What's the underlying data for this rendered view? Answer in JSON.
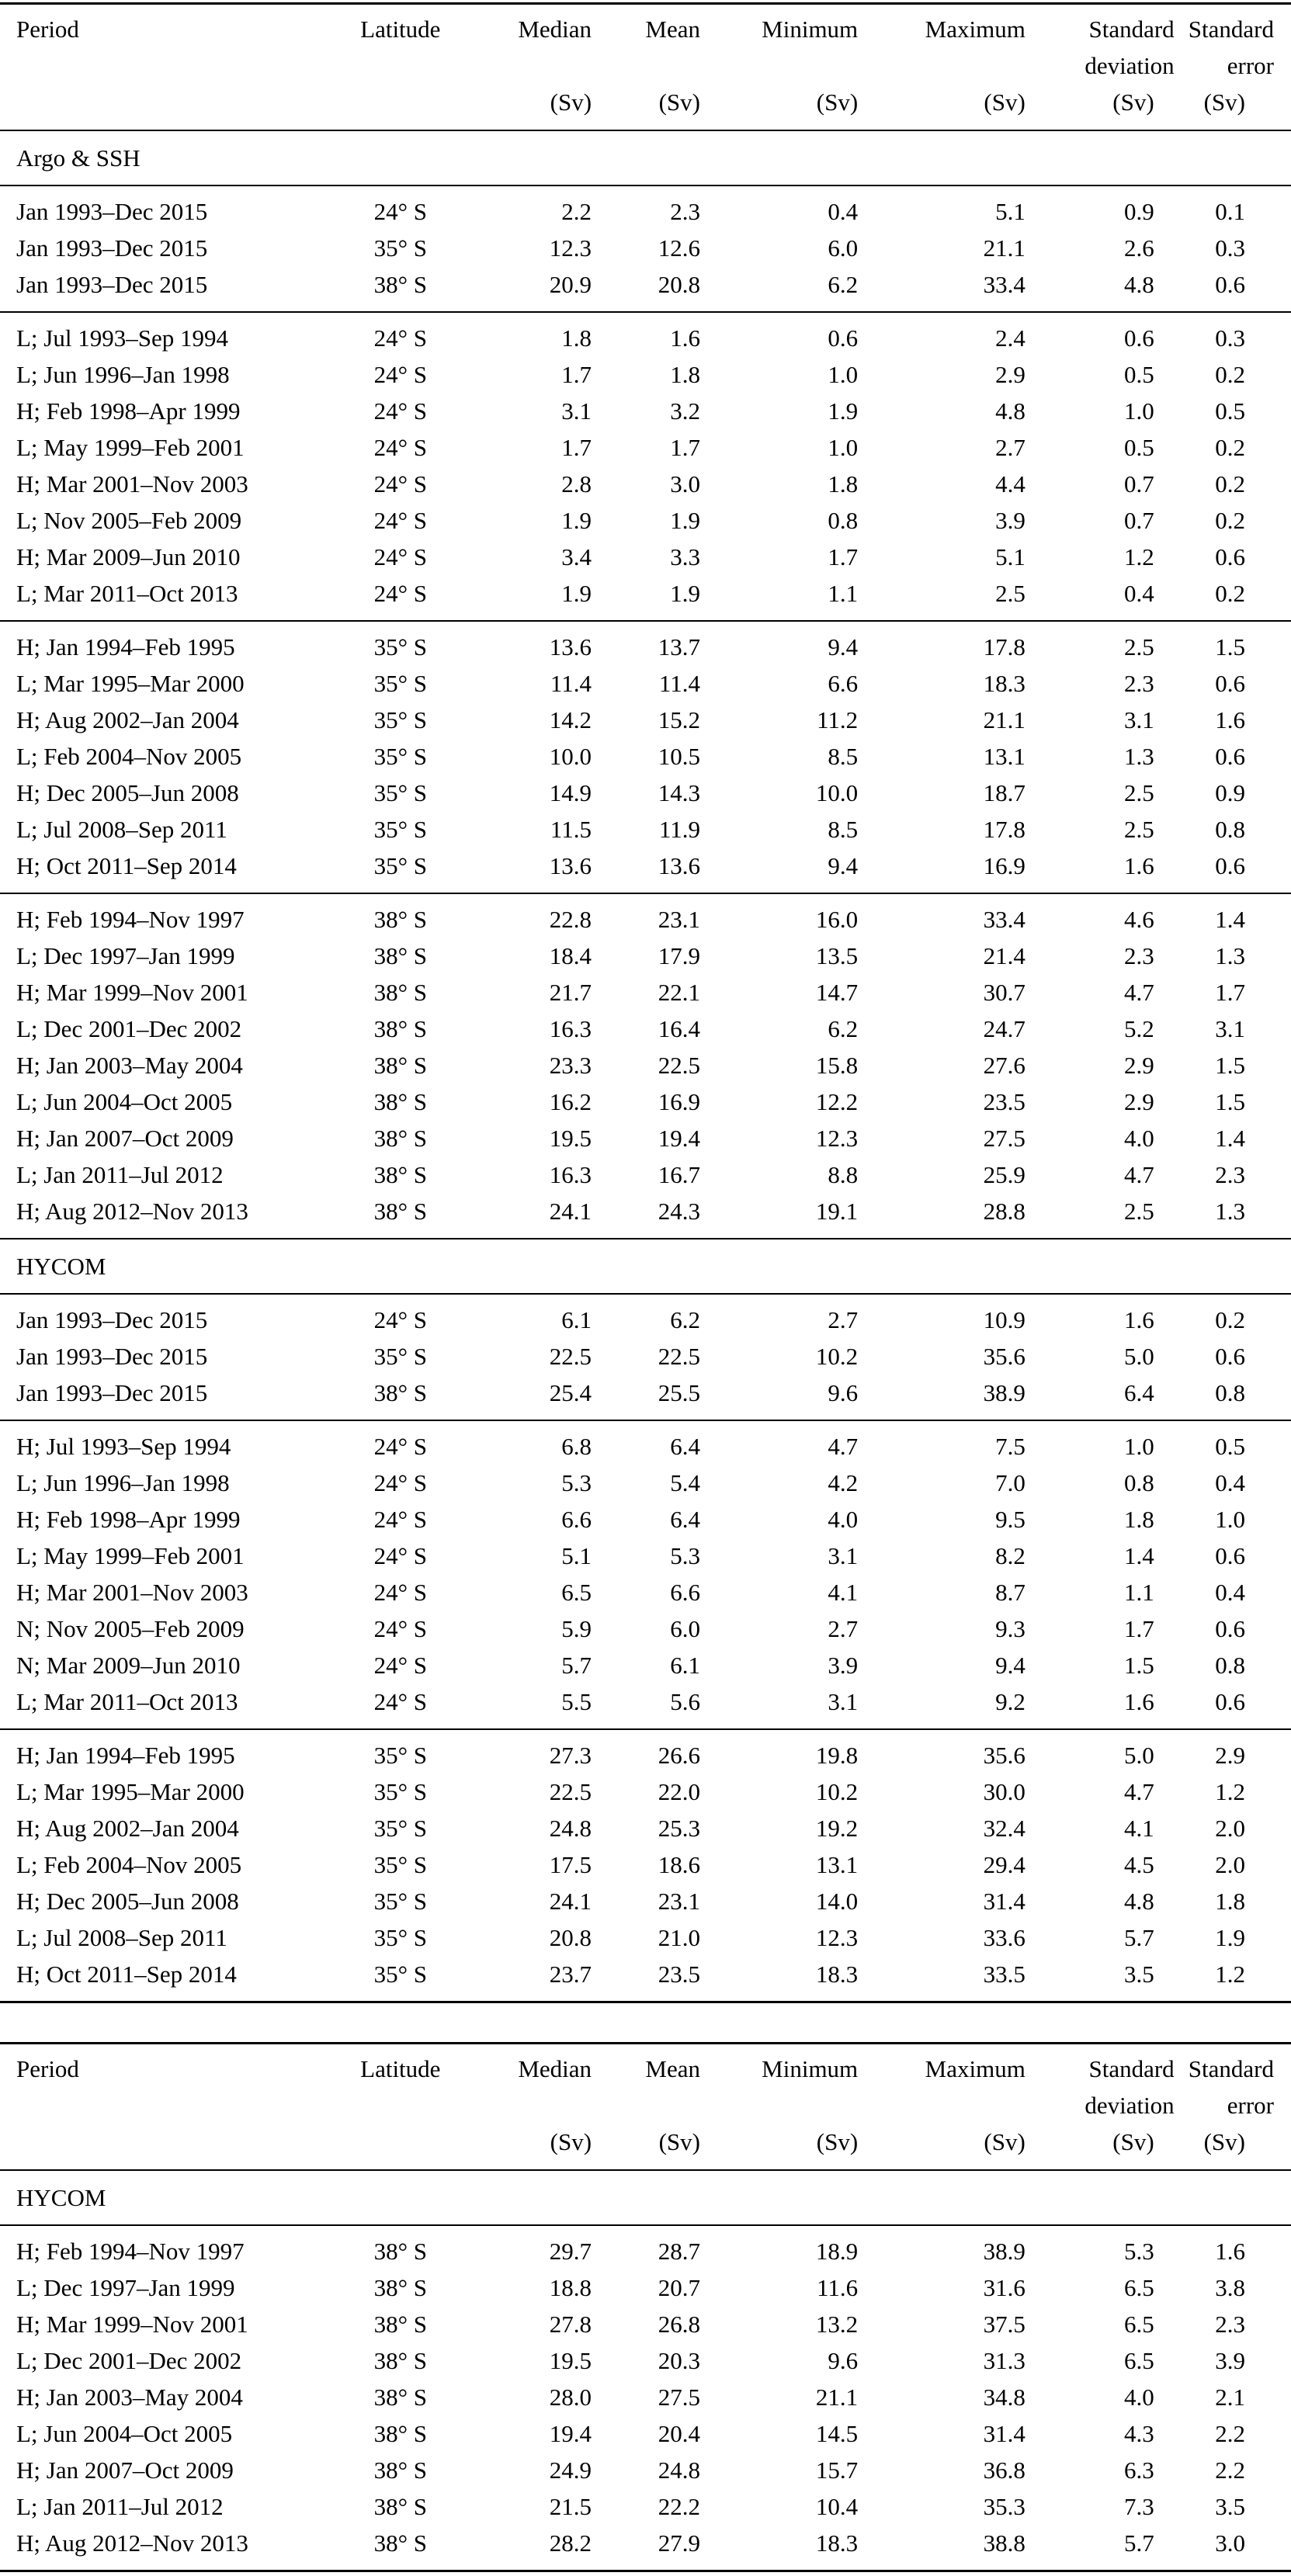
{
  "columns": [
    {
      "id": "period",
      "line1": "Period",
      "line2": "",
      "unit": ""
    },
    {
      "id": "latitude",
      "line1": "Latitude",
      "line2": "",
      "unit": ""
    },
    {
      "id": "median",
      "line1": "Median",
      "line2": "",
      "unit": "(Sv)"
    },
    {
      "id": "mean",
      "line1": "Mean",
      "line2": "",
      "unit": "(Sv)"
    },
    {
      "id": "minimum",
      "line1": "Minimum",
      "line2": "",
      "unit": "(Sv)"
    },
    {
      "id": "maximum",
      "line1": "Maximum",
      "line2": "",
      "unit": "(Sv)"
    },
    {
      "id": "std-deviation",
      "line1": "Standard",
      "line2": "deviation",
      "unit": "(Sv)"
    },
    {
      "id": "std-error",
      "line1": "Standard",
      "line2": "error",
      "unit": "(Sv)"
    }
  ],
  "tables": [
    {
      "sections": [
        {
          "title": "Argo & SSH",
          "groups": [
            [
              [
                "Jan 1993–Dec 2015",
                "24° S",
                "2.2",
                "2.3",
                "0.4",
                "5.1",
                "0.9",
                "0.1"
              ],
              [
                "Jan 1993–Dec 2015",
                "35° S",
                "12.3",
                "12.6",
                "6.0",
                "21.1",
                "2.6",
                "0.3"
              ],
              [
                "Jan 1993–Dec 2015",
                "38° S",
                "20.9",
                "20.8",
                "6.2",
                "33.4",
                "4.8",
                "0.6"
              ]
            ],
            [
              [
                "L; Jul 1993–Sep 1994",
                "24° S",
                "1.8",
                "1.6",
                "0.6",
                "2.4",
                "0.6",
                "0.3"
              ],
              [
                "L; Jun 1996–Jan 1998",
                "24° S",
                "1.7",
                "1.8",
                "1.0",
                "2.9",
                "0.5",
                "0.2"
              ],
              [
                "H; Feb 1998–Apr 1999",
                "24° S",
                "3.1",
                "3.2",
                "1.9",
                "4.8",
                "1.0",
                "0.5"
              ],
              [
                "L; May 1999–Feb 2001",
                "24° S",
                "1.7",
                "1.7",
                "1.0",
                "2.7",
                "0.5",
                "0.2"
              ],
              [
                "H; Mar 2001–Nov 2003",
                "24° S",
                "2.8",
                "3.0",
                "1.8",
                "4.4",
                "0.7",
                "0.2"
              ],
              [
                "L; Nov 2005–Feb 2009",
                "24° S",
                "1.9",
                "1.9",
                "0.8",
                "3.9",
                "0.7",
                "0.2"
              ],
              [
                "H; Mar 2009–Jun 2010",
                "24° S",
                "3.4",
                "3.3",
                "1.7",
                "5.1",
                "1.2",
                "0.6"
              ],
              [
                "L; Mar 2011–Oct 2013",
                "24° S",
                "1.9",
                "1.9",
                "1.1",
                "2.5",
                "0.4",
                "0.2"
              ]
            ],
            [
              [
                "H; Jan 1994–Feb 1995",
                "35° S",
                "13.6",
                "13.7",
                "9.4",
                "17.8",
                "2.5",
                "1.5"
              ],
              [
                "L; Mar 1995–Mar 2000",
                "35° S",
                "11.4",
                "11.4",
                "6.6",
                "18.3",
                "2.3",
                "0.6"
              ],
              [
                "H; Aug 2002–Jan 2004",
                "35° S",
                "14.2",
                "15.2",
                "11.2",
                "21.1",
                "3.1",
                "1.6"
              ],
              [
                "L; Feb 2004–Nov 2005",
                "35° S",
                "10.0",
                "10.5",
                "8.5",
                "13.1",
                "1.3",
                "0.6"
              ],
              [
                "H; Dec 2005–Jun 2008",
                "35° S",
                "14.9",
                "14.3",
                "10.0",
                "18.7",
                "2.5",
                "0.9"
              ],
              [
                "L; Jul 2008–Sep 2011",
                "35° S",
                "11.5",
                "11.9",
                "8.5",
                "17.8",
                "2.5",
                "0.8"
              ],
              [
                "H; Oct 2011–Sep 2014",
                "35° S",
                "13.6",
                "13.6",
                "9.4",
                "16.9",
                "1.6",
                "0.6"
              ]
            ],
            [
              [
                "H; Feb 1994–Nov 1997",
                "38° S",
                "22.8",
                "23.1",
                "16.0",
                "33.4",
                "4.6",
                "1.4"
              ],
              [
                "L; Dec 1997–Jan 1999",
                "38° S",
                "18.4",
                "17.9",
                "13.5",
                "21.4",
                "2.3",
                "1.3"
              ],
              [
                "H; Mar 1999–Nov 2001",
                "38° S",
                "21.7",
                "22.1",
                "14.7",
                "30.7",
                "4.7",
                "1.7"
              ],
              [
                "L; Dec 2001–Dec 2002",
                "38° S",
                "16.3",
                "16.4",
                "6.2",
                "24.7",
                "5.2",
                "3.1"
              ],
              [
                "H; Jan 2003–May 2004",
                "38° S",
                "23.3",
                "22.5",
                "15.8",
                "27.6",
                "2.9",
                "1.5"
              ],
              [
                "L; Jun 2004–Oct 2005",
                "38° S",
                "16.2",
                "16.9",
                "12.2",
                "23.5",
                "2.9",
                "1.5"
              ],
              [
                "H; Jan 2007–Oct 2009",
                "38° S",
                "19.5",
                "19.4",
                "12.3",
                "27.5",
                "4.0",
                "1.4"
              ],
              [
                "L; Jan 2011–Jul 2012",
                "38° S",
                "16.3",
                "16.7",
                "8.8",
                "25.9",
                "4.7",
                "2.3"
              ],
              [
                "H; Aug 2012–Nov 2013",
                "38° S",
                "24.1",
                "24.3",
                "19.1",
                "28.8",
                "2.5",
                "1.3"
              ]
            ]
          ]
        },
        {
          "title": "HYCOM",
          "groups": [
            [
              [
                "Jan 1993–Dec 2015",
                "24° S",
                "6.1",
                "6.2",
                "2.7",
                "10.9",
                "1.6",
                "0.2"
              ],
              [
                "Jan 1993–Dec 2015",
                "35° S",
                "22.5",
                "22.5",
                "10.2",
                "35.6",
                "5.0",
                "0.6"
              ],
              [
                "Jan 1993–Dec 2015",
                "38° S",
                "25.4",
                "25.5",
                "9.6",
                "38.9",
                "6.4",
                "0.8"
              ]
            ],
            [
              [
                "H; Jul 1993–Sep 1994",
                "24° S",
                "6.8",
                "6.4",
                "4.7",
                "7.5",
                "1.0",
                "0.5"
              ],
              [
                "L; Jun 1996–Jan 1998",
                "24° S",
                "5.3",
                "5.4",
                "4.2",
                "7.0",
                "0.8",
                "0.4"
              ],
              [
                "H; Feb 1998–Apr 1999",
                "24° S",
                "6.6",
                "6.4",
                "4.0",
                "9.5",
                "1.8",
                "1.0"
              ],
              [
                "L; May 1999–Feb 2001",
                "24° S",
                "5.1",
                "5.3",
                "3.1",
                "8.2",
                "1.4",
                "0.6"
              ],
              [
                "H; Mar 2001–Nov 2003",
                "24° S",
                "6.5",
                "6.6",
                "4.1",
                "8.7",
                "1.1",
                "0.4"
              ],
              [
                "N; Nov 2005–Feb 2009",
                "24° S",
                "5.9",
                "6.0",
                "2.7",
                "9.3",
                "1.7",
                "0.6"
              ],
              [
                "N; Mar 2009–Jun 2010",
                "24° S",
                "5.7",
                "6.1",
                "3.9",
                "9.4",
                "1.5",
                "0.8"
              ],
              [
                "L; Mar 2011–Oct 2013",
                "24° S",
                "5.5",
                "5.6",
                "3.1",
                "9.2",
                "1.6",
                "0.6"
              ]
            ],
            [
              [
                "H; Jan 1994–Feb 1995",
                "35° S",
                "27.3",
                "26.6",
                "19.8",
                "35.6",
                "5.0",
                "2.9"
              ],
              [
                "L; Mar 1995–Mar 2000",
                "35° S",
                "22.5",
                "22.0",
                "10.2",
                "30.0",
                "4.7",
                "1.2"
              ],
              [
                "H; Aug 2002–Jan 2004",
                "35° S",
                "24.8",
                "25.3",
                "19.2",
                "32.4",
                "4.1",
                "2.0"
              ],
              [
                "L; Feb 2004–Nov 2005",
                "35° S",
                "17.5",
                "18.6",
                "13.1",
                "29.4",
                "4.5",
                "2.0"
              ],
              [
                "H; Dec 2005–Jun 2008",
                "35° S",
                "24.1",
                "23.1",
                "14.0",
                "31.4",
                "4.8",
                "1.8"
              ],
              [
                "L; Jul 2008–Sep 2011",
                "35° S",
                "20.8",
                "21.0",
                "12.3",
                "33.6",
                "5.7",
                "1.9"
              ],
              [
                "H; Oct 2011–Sep 2014",
                "35° S",
                "23.7",
                "23.5",
                "18.3",
                "33.5",
                "3.5",
                "1.2"
              ]
            ]
          ]
        }
      ]
    },
    {
      "sections": [
        {
          "title": "HYCOM",
          "groups": [
            [
              [
                "H; Feb 1994–Nov 1997",
                "38° S",
                "29.7",
                "28.7",
                "18.9",
                "38.9",
                "5.3",
                "1.6"
              ],
              [
                "L; Dec 1997–Jan 1999",
                "38° S",
                "18.8",
                "20.7",
                "11.6",
                "31.6",
                "6.5",
                "3.8"
              ],
              [
                "H; Mar 1999–Nov 2001",
                "38° S",
                "27.8",
                "26.8",
                "13.2",
                "37.5",
                "6.5",
                "2.3"
              ],
              [
                "L; Dec 2001–Dec 2002",
                "38° S",
                "19.5",
                "20.3",
                "9.6",
                "31.3",
                "6.5",
                "3.9"
              ],
              [
                "H; Jan 2003–May 2004",
                "38° S",
                "28.0",
                "27.5",
                "21.1",
                "34.8",
                "4.0",
                "2.1"
              ],
              [
                "L; Jun 2004–Oct 2005",
                "38° S",
                "19.4",
                "20.4",
                "14.5",
                "31.4",
                "4.3",
                "2.2"
              ],
              [
                "H; Jan 2007–Oct 2009",
                "38° S",
                "24.9",
                "24.8",
                "15.7",
                "36.8",
                "6.3",
                "2.2"
              ],
              [
                "L; Jan 2011–Jul 2012",
                "38° S",
                "21.5",
                "22.2",
                "10.4",
                "35.3",
                "7.3",
                "3.5"
              ],
              [
                "H; Aug 2012–Nov 2013",
                "38° S",
                "28.2",
                "27.9",
                "18.3",
                "38.8",
                "5.7",
                "3.0"
              ]
            ]
          ]
        }
      ]
    }
  ]
}
